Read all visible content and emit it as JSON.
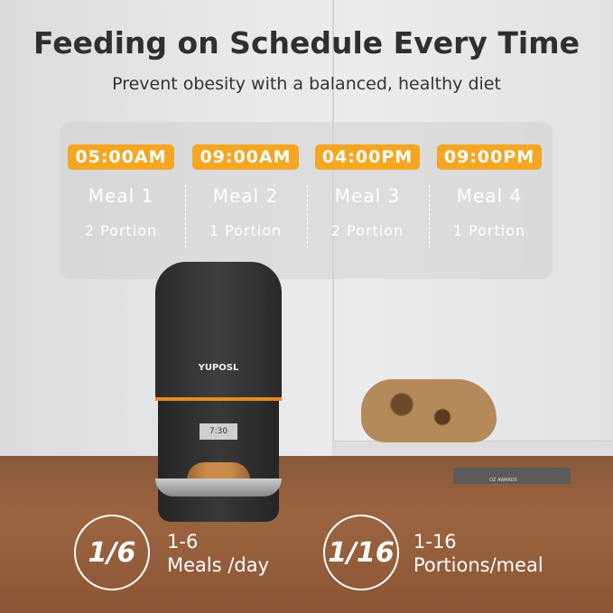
{
  "header": {
    "title": "Feeding on Schedule Every Time",
    "subtitle": "Prevent obesity with a balanced, healthy diet"
  },
  "schedule": [
    {
      "time": "05:00AM",
      "meal": "Meal 1",
      "portion": "2 Portion"
    },
    {
      "time": "09:00AM",
      "meal": "Meal 2",
      "portion": "1 Portion"
    },
    {
      "time": "04:00PM",
      "meal": "Meal 3",
      "portion": "2 Portion"
    },
    {
      "time": "09:00PM",
      "meal": "Meal 4",
      "portion": "1 Portion"
    }
  ],
  "product": {
    "brand": "YUPOSL",
    "display": "7:30",
    "book_text": "OZ AWARDS"
  },
  "stats": [
    {
      "icon": "1/6",
      "range": "1-6",
      "label": "Meals /day"
    },
    {
      "icon": "1/16",
      "range": "1-16",
      "label": "Portions/meal"
    }
  ],
  "colors": {
    "accent": "#f5a623",
    "band": "#e8891f"
  }
}
